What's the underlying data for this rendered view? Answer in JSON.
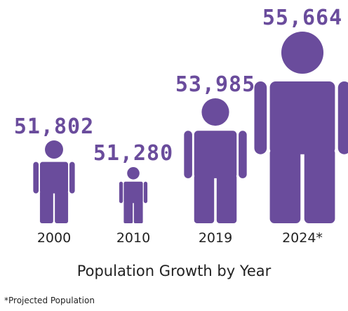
{
  "chart_data": {
    "type": "pictograph",
    "title": "Population Growth by Year",
    "footnote": "*Projected Population",
    "categories": [
      "2000",
      "2010",
      "2019",
      "2024*"
    ],
    "values": [
      51802,
      51280,
      53985,
      55664
    ],
    "value_labels": [
      "51,802",
      "51,280",
      "53,985",
      "55,664"
    ],
    "colors": {
      "figure": "#6a4c9c",
      "value_text": "#6a4c9c",
      "text": "#222222"
    }
  }
}
